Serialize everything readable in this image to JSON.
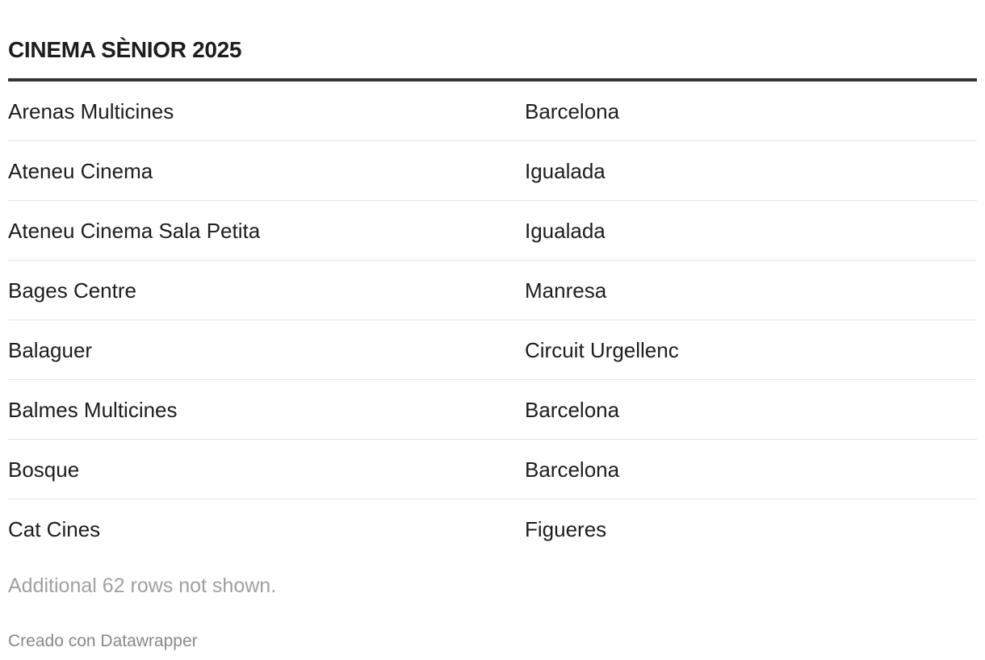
{
  "header": {
    "title": "CINEMA SÈNIOR 2025"
  },
  "table": {
    "rows": [
      [
        "Arenas Multicines",
        "Barcelona"
      ],
      [
        "Ateneu Cinema",
        "Igualada"
      ],
      [
        "Ateneu Cinema Sala Petita",
        "Igualada"
      ],
      [
        "Bages Centre",
        "Manresa"
      ],
      [
        "Balaguer",
        "Circuit Urgellenc"
      ],
      [
        "Balmes Multicines",
        "Barcelona"
      ],
      [
        "Bosque",
        "Barcelona"
      ],
      [
        "Cat Cines",
        "Figueres"
      ]
    ]
  },
  "notes": "Additional 62 rows not shown.",
  "footer": "Creado con Datawrapper"
}
